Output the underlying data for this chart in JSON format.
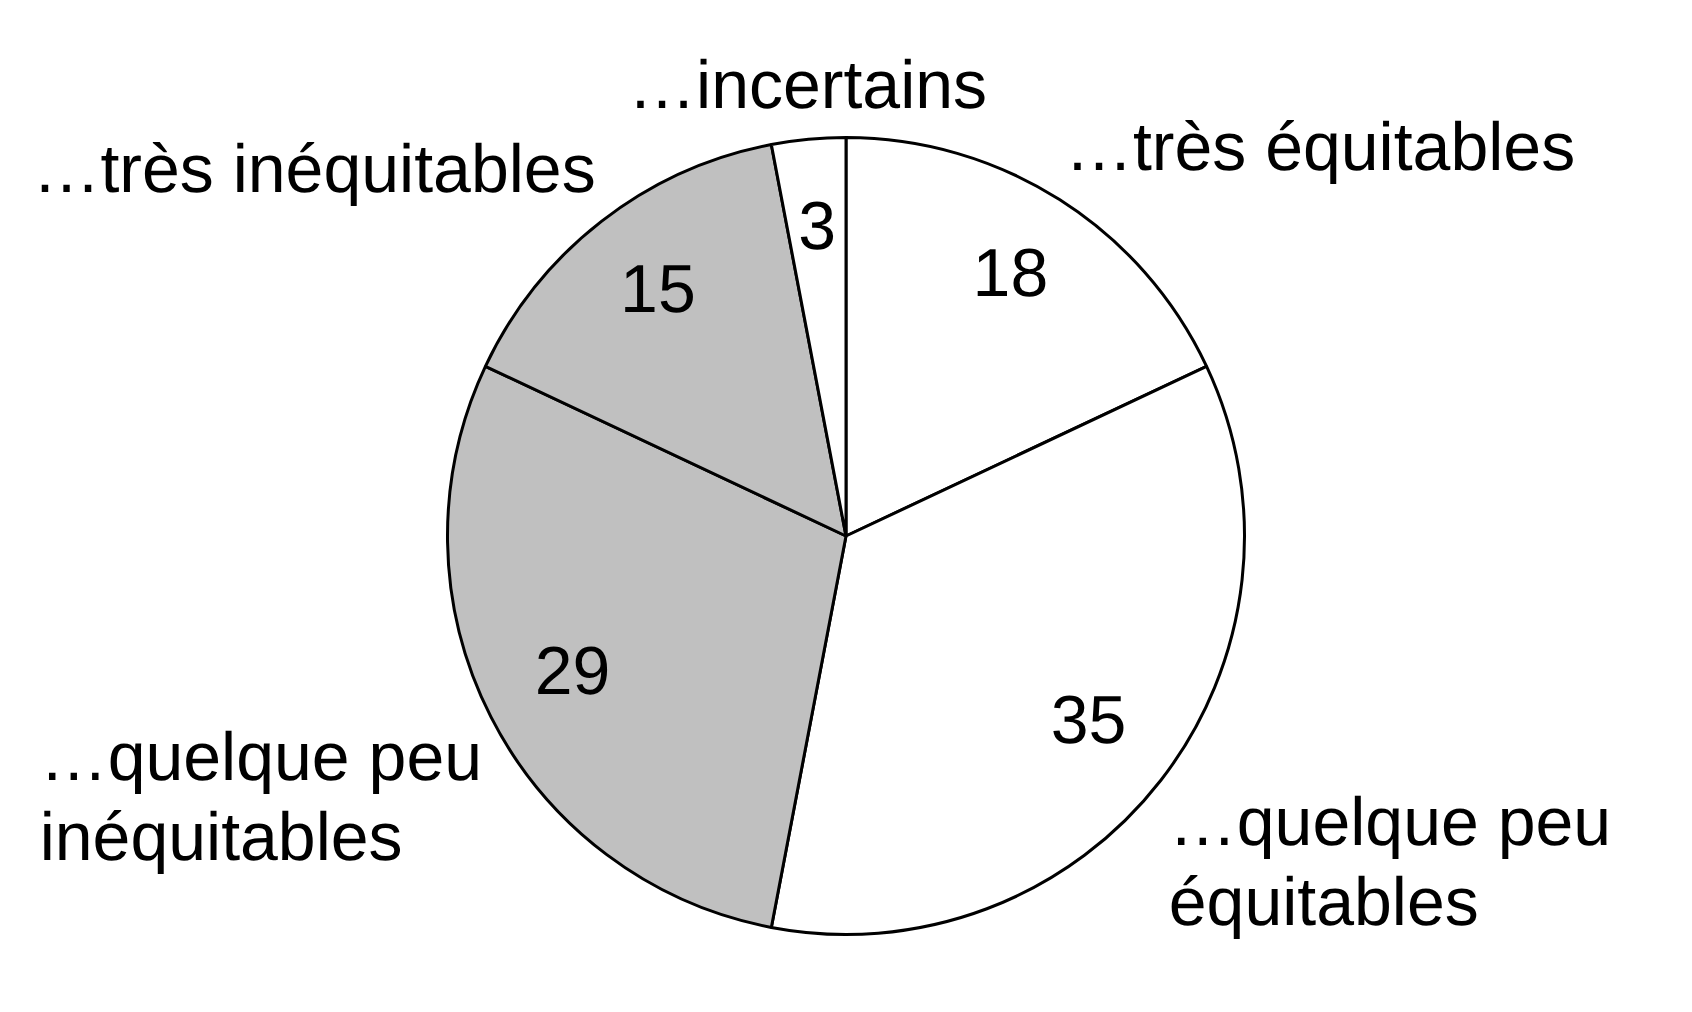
{
  "chart_data": {
    "type": "pie",
    "categories": [
      "…très équitables",
      "…quelque peu équitables",
      "…quelque peu inéquitables",
      "…très inéquitables",
      "…incertains"
    ],
    "values": [
      18,
      35,
      29,
      15,
      3
    ],
    "colors": [
      "#ffffff",
      "#ffffff",
      "#c0c0c0",
      "#c0c0c0",
      "#ffffff"
    ],
    "data_labels": true,
    "legend": false
  }
}
